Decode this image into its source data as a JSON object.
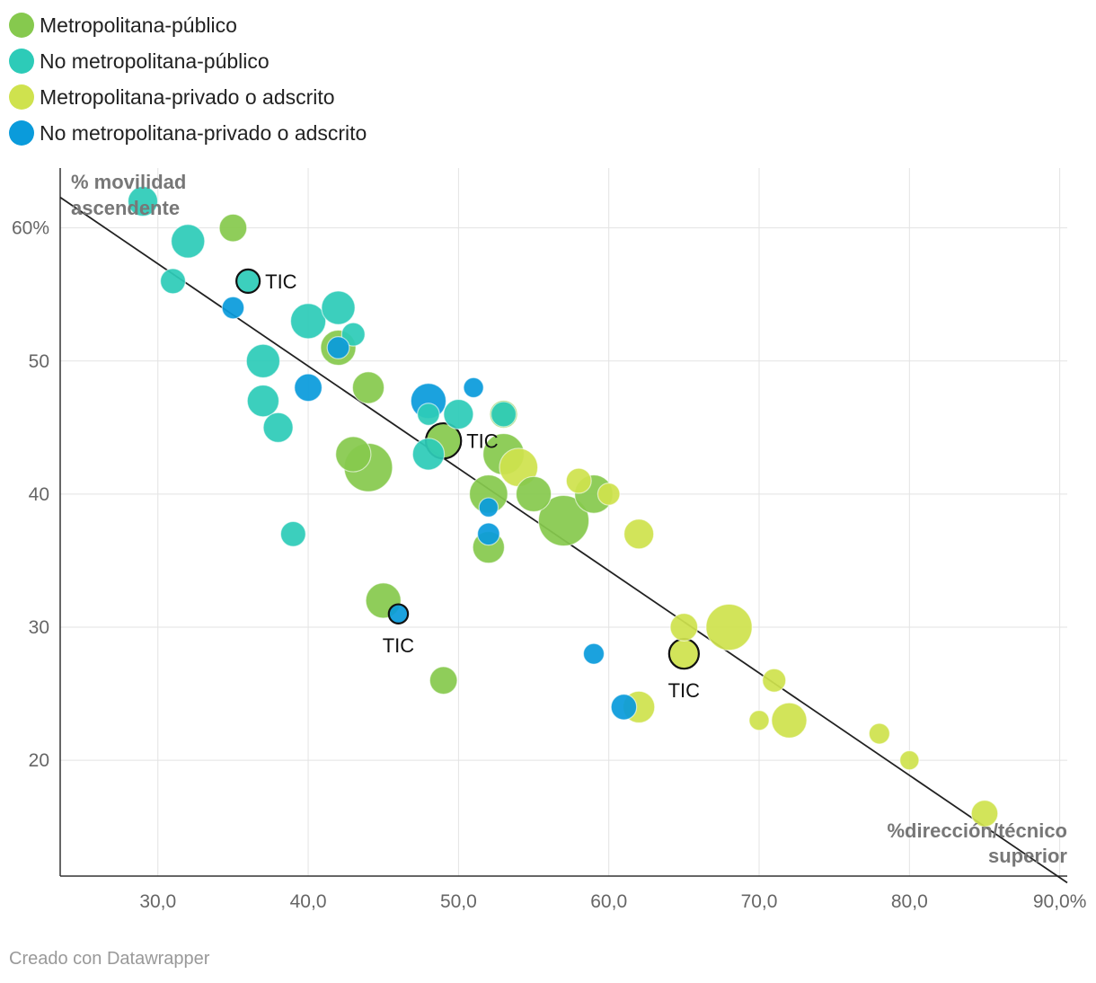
{
  "chart_data": {
    "type": "scatter",
    "title": "",
    "xlabel": "%dirección/técnico superior",
    "ylabel": "% movilidad ascendente",
    "xlim": [
      23.5,
      90.5
    ],
    "ylim": [
      11.3,
      64.5
    ],
    "grid": true,
    "legend_position": "top-left",
    "x_ticks": [
      {
        "value": 30,
        "label": "30,0"
      },
      {
        "value": 40,
        "label": "40,0"
      },
      {
        "value": 50,
        "label": "50,0"
      },
      {
        "value": 60,
        "label": "60,0"
      },
      {
        "value": 70,
        "label": "70,0"
      },
      {
        "value": 80,
        "label": "80,0"
      },
      {
        "value": 90,
        "label": "90,0%"
      }
    ],
    "y_ticks": [
      {
        "value": 20,
        "label": "20"
      },
      {
        "value": 30,
        "label": "30"
      },
      {
        "value": 40,
        "label": "40"
      },
      {
        "value": 50,
        "label": "50"
      },
      {
        "value": 60,
        "label": "60%"
      }
    ],
    "trendline": {
      "x": [
        23.5,
        90.5
      ],
      "y": [
        62.3,
        10.8
      ]
    },
    "series": [
      {
        "name": "Metropolitana-público",
        "color": "#86c94e",
        "points": [
          {
            "x": 35,
            "y": 60,
            "size": 2
          },
          {
            "x": 42,
            "y": 51,
            "size": 4
          },
          {
            "x": 44,
            "y": 48,
            "size": 3
          },
          {
            "x": 43,
            "y": 43,
            "size": 4
          },
          {
            "x": 44,
            "y": 42,
            "size": 9
          },
          {
            "x": 49,
            "y": 44,
            "size": 4,
            "label": "TIC",
            "highlight": true
          },
          {
            "x": 53,
            "y": 43,
            "size": 6
          },
          {
            "x": 52,
            "y": 40,
            "size": 5
          },
          {
            "x": 55,
            "y": 40,
            "size": 4
          },
          {
            "x": 57,
            "y": 38,
            "size": 10
          },
          {
            "x": 59,
            "y": 40,
            "size": 5
          },
          {
            "x": 52,
            "y": 36,
            "size": 3
          },
          {
            "x": 45,
            "y": 32,
            "size": 4
          },
          {
            "x": 49,
            "y": 26,
            "size": 2
          },
          {
            "x": 53,
            "y": 46,
            "size": 2
          }
        ]
      },
      {
        "name": "No metropolitana-público",
        "color": "#2dcbb8",
        "points": [
          {
            "x": 29,
            "y": 62,
            "size": 2.5
          },
          {
            "x": 32,
            "y": 59,
            "size": 3.5
          },
          {
            "x": 31,
            "y": 56,
            "size": 1.5
          },
          {
            "x": 36,
            "y": 56,
            "size": 1.2,
            "label": "TIC",
            "highlight": true
          },
          {
            "x": 42,
            "y": 54,
            "size": 3.5
          },
          {
            "x": 40,
            "y": 53,
            "size": 4
          },
          {
            "x": 43,
            "y": 52,
            "size": 1.2
          },
          {
            "x": 37,
            "y": 50,
            "size": 3.5
          },
          {
            "x": 37,
            "y": 47,
            "size": 3
          },
          {
            "x": 38,
            "y": 45,
            "size": 2.5
          },
          {
            "x": 48,
            "y": 43,
            "size": 3
          },
          {
            "x": 50,
            "y": 46,
            "size": 2.5
          },
          {
            "x": 48,
            "y": 46,
            "size": 1
          },
          {
            "x": 53,
            "y": 46,
            "size": 1.5
          },
          {
            "x": 39,
            "y": 37,
            "size": 1.5
          }
        ]
      },
      {
        "name": "Metropolitana-privado o adscrito",
        "color": "#cfe24e",
        "points": [
          {
            "x": 54,
            "y": 42,
            "size": 5
          },
          {
            "x": 58,
            "y": 41,
            "size": 1.5
          },
          {
            "x": 60,
            "y": 40,
            "size": 1
          },
          {
            "x": 62,
            "y": 37,
            "size": 2.5
          },
          {
            "x": 65,
            "y": 30,
            "size": 2
          },
          {
            "x": 65,
            "y": 28,
            "size": 2.5,
            "label": "TIC",
            "highlight": true
          },
          {
            "x": 68,
            "y": 30,
            "size": 8
          },
          {
            "x": 71,
            "y": 26,
            "size": 1.2
          },
          {
            "x": 62,
            "y": 24,
            "size": 3
          },
          {
            "x": 70,
            "y": 23,
            "size": 0.7
          },
          {
            "x": 72,
            "y": 23,
            "size": 4
          },
          {
            "x": 78,
            "y": 22,
            "size": 0.8
          },
          {
            "x": 80,
            "y": 20,
            "size": 0.6
          },
          {
            "x": 85,
            "y": 16,
            "size": 1.8
          }
        ]
      },
      {
        "name": "No metropolitana-privado o adscrito",
        "color": "#0a9bdb",
        "points": [
          {
            "x": 35,
            "y": 54,
            "size": 1
          },
          {
            "x": 42,
            "y": 51,
            "size": 1
          },
          {
            "x": 40,
            "y": 48,
            "size": 2
          },
          {
            "x": 48,
            "y": 47,
            "size": 4
          },
          {
            "x": 51,
            "y": 48,
            "size": 0.7
          },
          {
            "x": 52,
            "y": 39,
            "size": 0.6
          },
          {
            "x": 52,
            "y": 37,
            "size": 1
          },
          {
            "x": 46,
            "y": 31,
            "size": 0.6,
            "label": "TIC",
            "highlight": true
          },
          {
            "x": 59,
            "y": 28,
            "size": 0.8
          },
          {
            "x": 61,
            "y": 24,
            "size": 1.6
          }
        ]
      }
    ]
  },
  "footer": {
    "credit": "Creado con Datawrapper"
  }
}
